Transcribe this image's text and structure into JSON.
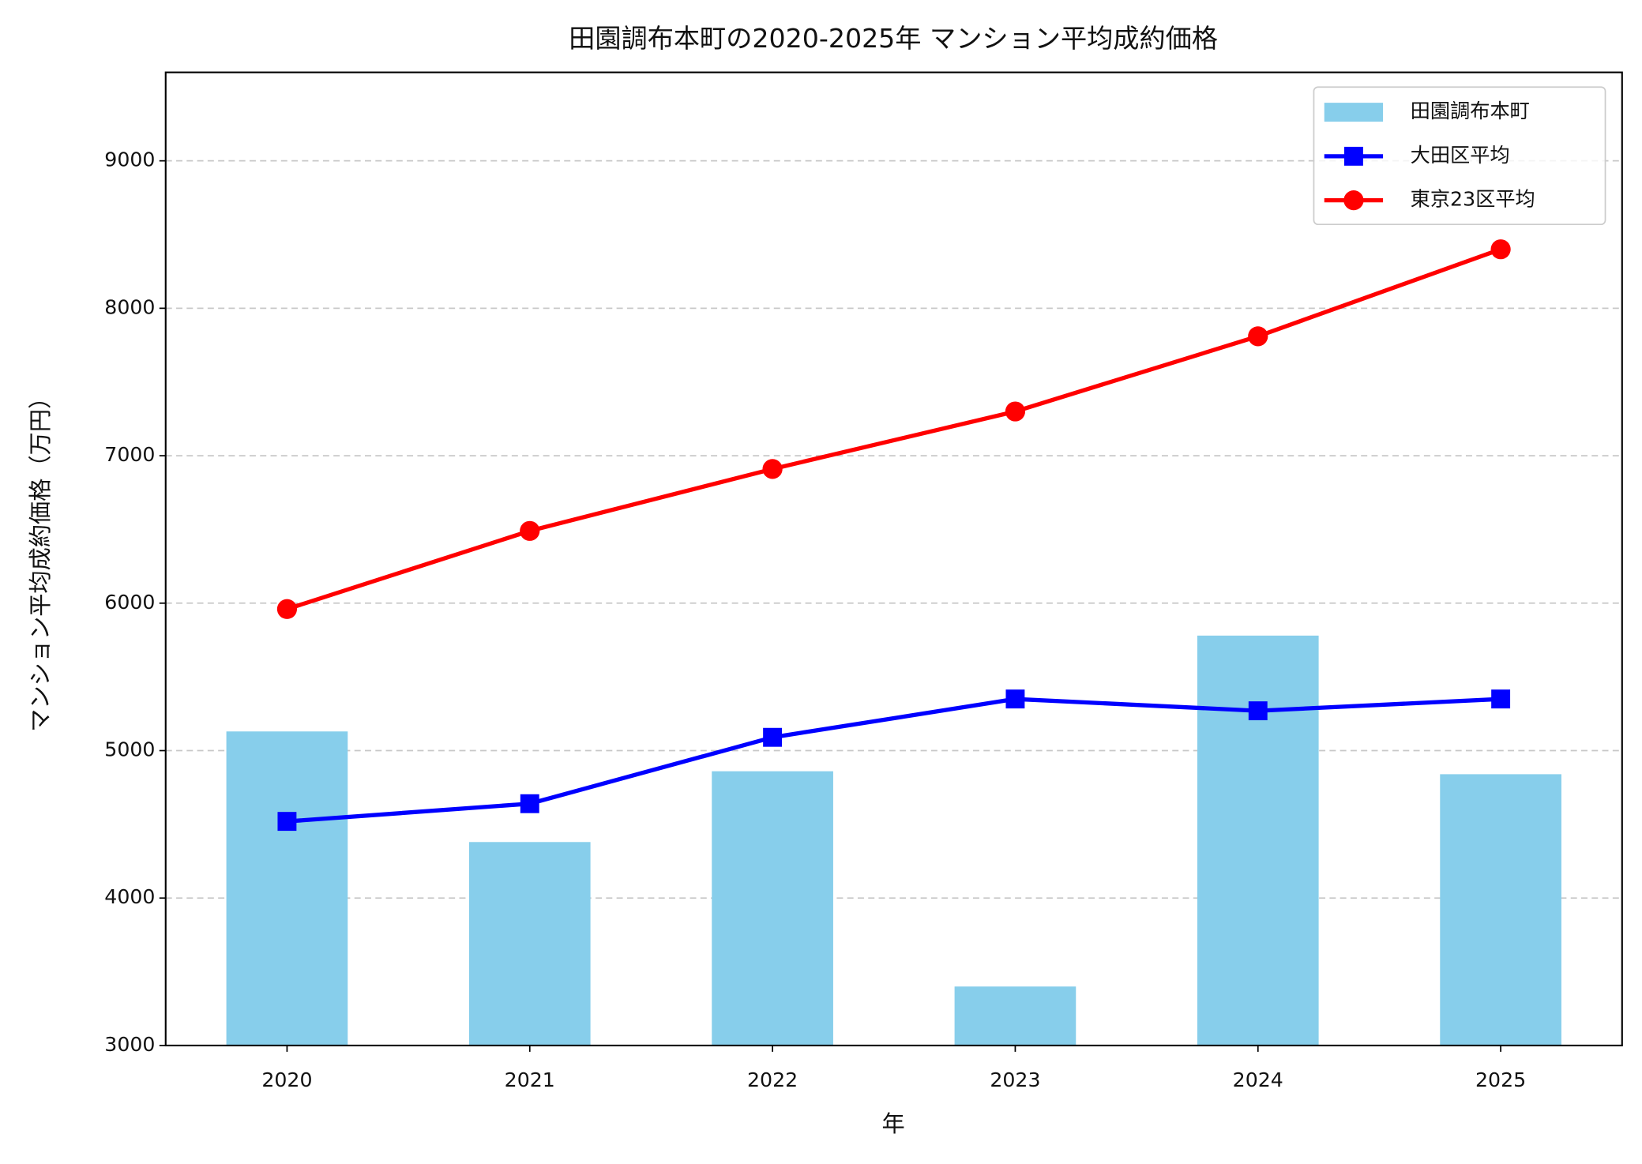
{
  "chart_data": {
    "type": "bar_line",
    "title": "田園調布本町の2020-2025年 マンション平均成約価格",
    "x_label": "年",
    "y_label": "マンション平均成約価格（万円）",
    "categories": [
      "2020",
      "2021",
      "2022",
      "2023",
      "2024",
      "2025"
    ],
    "series": [
      {
        "name": "田園調布本町",
        "type": "bar",
        "color": "#87ceeb",
        "values": [
          5130,
          4380,
          4860,
          3400,
          5780,
          4840
        ]
      },
      {
        "name": "大田区平均",
        "type": "line",
        "marker": "square",
        "color": "#0000ff",
        "values": [
          4520,
          4640,
          5090,
          5350,
          5270,
          5350
        ]
      },
      {
        "name": "東京23区平均",
        "type": "line",
        "marker": "circle",
        "color": "#ff0000",
        "values": [
          5960,
          6490,
          6910,
          7300,
          7810,
          8400
        ]
      }
    ],
    "ylim": [
      3000,
      9600
    ],
    "yticks": [
      3000,
      4000,
      5000,
      6000,
      7000,
      8000,
      9000
    ],
    "grid": true,
    "legend": "upper right"
  }
}
